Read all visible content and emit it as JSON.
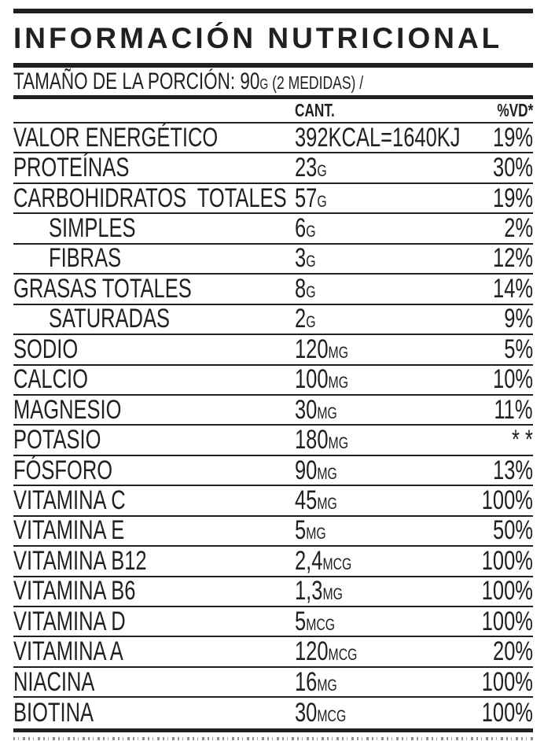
{
  "title": "INFORMACIÓN NUTRICIONAL",
  "serving": {
    "label": "TAMAÑO DE LA PORCIÓN: ",
    "amount": "90",
    "unit": "G",
    "note": " (2 MEDIDAS) /"
  },
  "table": {
    "columns": {
      "amount": "CANT.",
      "daily_value": "%VD*"
    },
    "rows": [
      {
        "name": "VALOR ENERGÉTICO",
        "amount": "392KCAL=1640KJ",
        "unit": "",
        "dv": "19%",
        "indent": false
      },
      {
        "name": "PROTEÍNAS",
        "amount": "23",
        "unit": "G",
        "dv": "30%",
        "indent": false
      },
      {
        "name": "CARBOHIDRATOS  TOTALES",
        "amount": "57",
        "unit": "G",
        "dv": "19%",
        "indent": false
      },
      {
        "name": "SIMPLES",
        "amount": "6",
        "unit": "G",
        "dv": "2%",
        "indent": true
      },
      {
        "name": "FIBRAS",
        "amount": "3",
        "unit": "G",
        "dv": "12%",
        "indent": true
      },
      {
        "name": "GRASAS TOTALES",
        "amount": "8",
        "unit": "G",
        "dv": "14%",
        "indent": false
      },
      {
        "name": "SATURADAS",
        "amount": "2",
        "unit": "G",
        "dv": "9%",
        "indent": true
      },
      {
        "name": "SODIO",
        "amount": "120",
        "unit": "MG",
        "dv": "5%",
        "indent": false
      },
      {
        "name": "CALCIO",
        "amount": "100",
        "unit": "MG",
        "dv": "10%",
        "indent": false
      },
      {
        "name": "MAGNESIO",
        "amount": "30",
        "unit": "MG",
        "dv": "11%",
        "indent": false
      },
      {
        "name": "POTASIO",
        "amount": "180",
        "unit": "MG",
        "dv": "* *",
        "indent": false
      },
      {
        "name": "FÓSFORO",
        "amount": "90",
        "unit": "MG",
        "dv": "13%",
        "indent": false
      },
      {
        "name": "VITAMINA C",
        "amount": "45",
        "unit": "MG",
        "dv": "100%",
        "indent": false
      },
      {
        "name": "VITAMINA E",
        "amount": "5",
        "unit": "MG",
        "dv": "50%",
        "indent": false
      },
      {
        "name": "VITAMINA B12",
        "amount": "2,4",
        "unit": "MCG",
        "dv": "100%",
        "indent": false
      },
      {
        "name": "VITAMINA B6",
        "amount": "1,3",
        "unit": "MG",
        "dv": "100%",
        "indent": false
      },
      {
        "name": "VITAMINA D",
        "amount": "5",
        "unit": "MCG",
        "dv": "100%",
        "indent": false
      },
      {
        "name": "VITAMINA A",
        "amount": "120",
        "unit": "MCG",
        "dv": "20%",
        "indent": false
      },
      {
        "name": "NIACINA",
        "amount": "16",
        "unit": "MG",
        "dv": "100%",
        "indent": false
      },
      {
        "name": "BIOTINA",
        "amount": "30",
        "unit": "MCG",
        "dv": "100%",
        "indent": false
      }
    ]
  },
  "colors": {
    "ink": "#221f20",
    "background": "#ffffff"
  }
}
